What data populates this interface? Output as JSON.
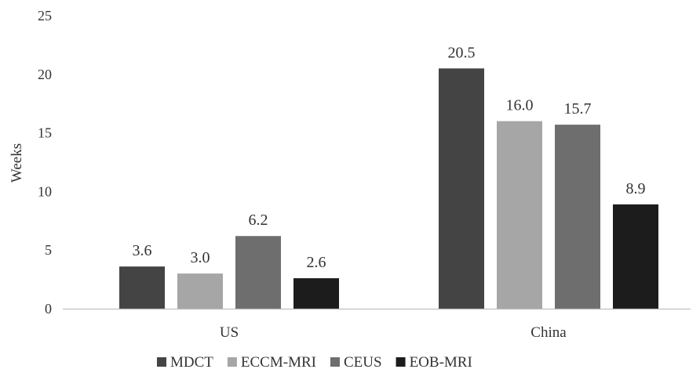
{
  "chart_data": {
    "type": "bar",
    "categories": [
      "US",
      "China"
    ],
    "series": [
      {
        "name": "MDCT",
        "values": [
          3.6,
          20.5
        ],
        "color": "#444444"
      },
      {
        "name": "ECCM-MRI",
        "values": [
          3.0,
          16.0
        ],
        "color": "#a6a6a6"
      },
      {
        "name": "CEUS",
        "values": [
          6.2,
          15.7
        ],
        "color": "#6e6e6e"
      },
      {
        "name": "EOB-MRI",
        "values": [
          2.6,
          8.9
        ],
        "color": "#1c1c1c"
      }
    ],
    "data_labels": [
      [
        "3.6",
        "20.5"
      ],
      [
        "3.0",
        "16.0"
      ],
      [
        "6.2",
        "15.7"
      ],
      [
        "2.6",
        "8.9"
      ]
    ],
    "yticks": [
      "0",
      "5",
      "10",
      "15",
      "20",
      "25"
    ],
    "ylim": [
      0,
      25
    ],
    "ylabel": "Weeks",
    "xlabel": "",
    "title": "",
    "grid": false,
    "legend_position": "bottom"
  }
}
